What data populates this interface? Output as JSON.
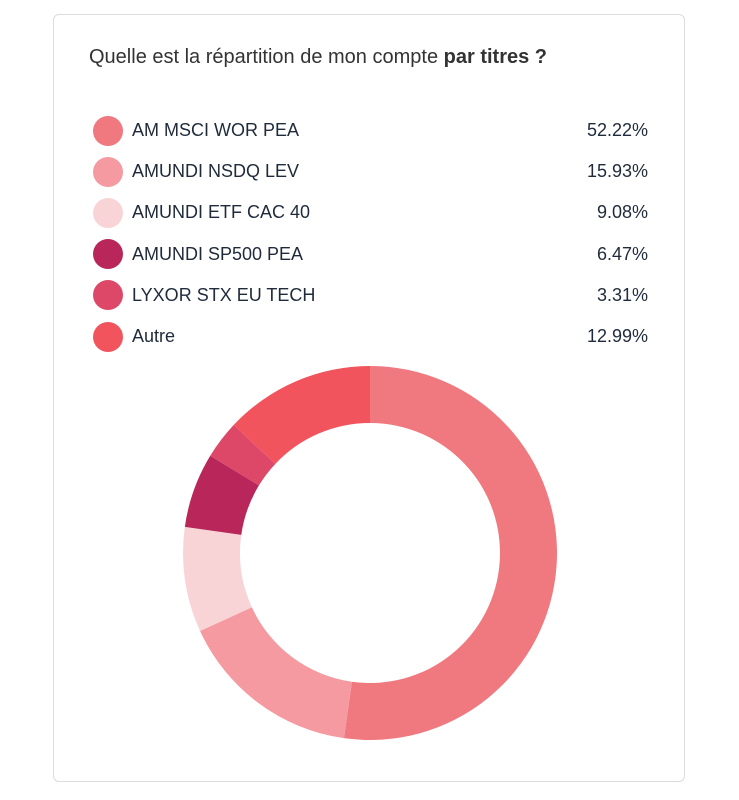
{
  "card": {
    "title_prefix": "Quelle est la répartition de mon compte ",
    "title_bold": "par titres ?"
  },
  "chart_data": {
    "type": "pie",
    "donut": true,
    "title": "Quelle est la répartition de mon compte par titres ?",
    "legend_position": "top",
    "slices": [
      {
        "name": "AM MSCI WOR PEA",
        "value": 52.22,
        "label": "52.22%",
        "color": "#f0787f"
      },
      {
        "name": "AMUNDI NSDQ LEV",
        "value": 15.93,
        "label": "15.93%",
        "color": "#f49aa0"
      },
      {
        "name": "AMUNDI ETF CAC 40",
        "value": 9.08,
        "label": "9.08%",
        "color": "#f8d4d7"
      },
      {
        "name": "AMUNDI SP500 PEA",
        "value": 6.47,
        "label": "6.47%",
        "color": "#b9265a"
      },
      {
        "name": "LYXOR STX EU TECH",
        "value": 3.31,
        "label": "3.31%",
        "color": "#dd4868"
      },
      {
        "name": "Autre",
        "value": 12.99,
        "label": "12.99%",
        "color": "#f2545e"
      }
    ]
  }
}
